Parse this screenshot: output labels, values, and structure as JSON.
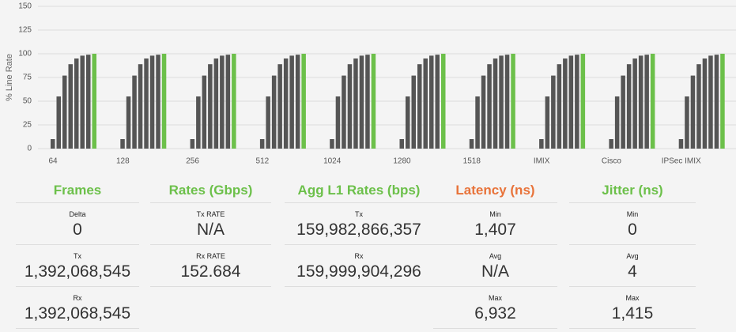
{
  "chart_data": {
    "type": "bar",
    "y_label": "% Line Rate",
    "categories": [
      "64",
      "128",
      "256",
      "512",
      "1024",
      "1280",
      "1518",
      "IMIX",
      "Cisco",
      "IPSec IMIX"
    ],
    "series": [
      {
        "color": "#555555",
        "values": [
          10,
          10,
          10,
          10,
          10,
          10,
          10,
          10,
          10,
          10
        ]
      },
      {
        "color": "#555555",
        "values": [
          55,
          55,
          55,
          55,
          55,
          55,
          55,
          55,
          55,
          55
        ]
      },
      {
        "color": "#555555",
        "values": [
          77,
          77,
          77,
          77,
          77,
          77,
          77,
          77,
          77,
          77
        ]
      },
      {
        "color": "#555555",
        "values": [
          89,
          89,
          89,
          89,
          89,
          89,
          89,
          89,
          89,
          89
        ]
      },
      {
        "color": "#555555",
        "values": [
          95,
          95,
          95,
          95,
          95,
          95,
          95,
          95,
          95,
          95
        ]
      },
      {
        "color": "#555555",
        "values": [
          98,
          98,
          98,
          98,
          98,
          98,
          98,
          98,
          98,
          98
        ]
      },
      {
        "color": "#555555",
        "values": [
          99,
          99,
          99,
          99,
          99,
          99,
          99,
          99,
          99,
          99
        ]
      },
      {
        "color": "#6cc04a",
        "values": [
          100,
          100,
          100,
          100,
          100,
          100,
          100,
          100,
          100,
          100
        ]
      }
    ],
    "ylim": [
      0,
      150
    ],
    "yticks": [
      0,
      25,
      50,
      75,
      100,
      125,
      150
    ],
    "grid": true
  },
  "panels": [
    {
      "title": "Frames",
      "color": "#6cc04a",
      "rows": [
        {
          "label": "Delta",
          "value": "0"
        },
        {
          "label": "Tx",
          "value": "1,392,068,545"
        },
        {
          "label": "Rx",
          "value": "1,392,068,545"
        }
      ]
    },
    {
      "title": "Rates (Gbps)",
      "color": "#6cc04a",
      "rows": [
        {
          "label": "Tx RATE",
          "value": "N/A"
        },
        {
          "label": "Rx RATE",
          "value": "152.684"
        }
      ]
    },
    {
      "title": "Agg L1 Rates (bps)",
      "color": "#6cc04a",
      "rows": [
        {
          "label": "Tx",
          "value": "159,982,866,357"
        },
        {
          "label": "Rx",
          "value": "159,999,904,296"
        }
      ]
    },
    {
      "title": "Latency (ns)",
      "color": "#e8733a",
      "rows": [
        {
          "label": "Min",
          "value": "1,407"
        },
        {
          "label": "Avg",
          "value": "N/A"
        },
        {
          "label": "Max",
          "value": "6,932"
        }
      ]
    },
    {
      "title": "Jitter (ns)",
      "color": "#6cc04a",
      "rows": [
        {
          "label": "Min",
          "value": "0"
        },
        {
          "label": "Avg",
          "value": "4"
        },
        {
          "label": "Max",
          "value": "1,415"
        }
      ]
    }
  ]
}
